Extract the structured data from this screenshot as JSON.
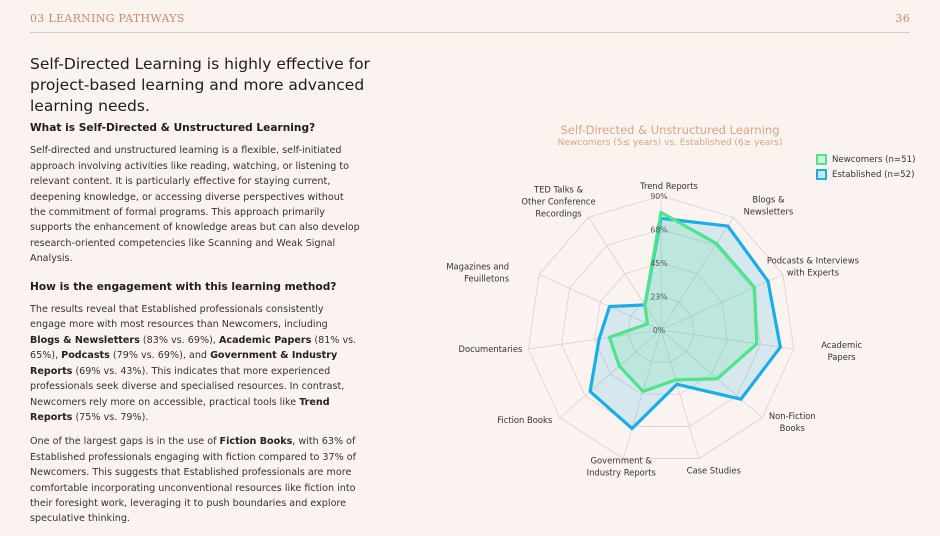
{
  "header": {
    "section": "03 LEARNING PATHWAYS",
    "page_number": "36"
  },
  "headline": "Self-Directed Learning is highly effective for project-based learning and more advanced learning needs.",
  "section1": {
    "heading": "What is Self-Directed & Unstructured Learning?",
    "body": "Self-directed and unstructured learning is a flexible, self-initiated approach involving activities like reading, watching, or listening to relevant content. It is particularly effective for staying current, deepening knowledge, or accessing diverse perspectives without the commitment of formal programs. This approach primarily supports the enhancement of knowledge areas but can also develop research-oriented competencies like Scanning and Weak Signal Analysis."
  },
  "section2": {
    "heading": "How is the engagement with this learning method?",
    "p1": [
      {
        "t": "The results reveal that Established professionals consistently engage more with most resources than Newcomers, including "
      },
      {
        "t": "Blogs & Newsletters",
        "b": true
      },
      {
        "t": " (83% vs. 69%), "
      },
      {
        "t": "Academic Papers",
        "b": true
      },
      {
        "t": " (81% vs. 65%), "
      },
      {
        "t": "Podcasts",
        "b": true
      },
      {
        "t": " (79% vs. 69%), and "
      },
      {
        "t": "Government & Industry Reports",
        "b": true
      },
      {
        "t": " (69% vs. 43%). This indicates that more experienced professionals seek diverse and specialised resources. In contrast, Newcomers rely more on accessible, practical tools like "
      },
      {
        "t": "Trend Reports",
        "b": true
      },
      {
        "t": " (75% vs. 79%)."
      }
    ],
    "p2": [
      {
        "t": "One of the largest gaps is in the use of "
      },
      {
        "t": "Fiction Books",
        "b": true
      },
      {
        "t": ", with 63% of Established professionals engaging with fiction compared to 37% of Newcomers. This suggests that Established professionals are more comfortable incorporating unconventional resources like fiction into their foresight work, leveraging it to push boundaries and explore speculative thinking."
      }
    ]
  },
  "colors": {
    "newcomers": "#4ee38f",
    "established": "#19aee6",
    "accent": "#d9a487"
  },
  "chart_data": {
    "type": "radar",
    "title": "Self-Directed & Unstructured Learning",
    "subtitle": "Newcomers (5≤ years) vs. Established (6≥ years)",
    "categories": [
      "Trend Reports",
      "Blogs & Newsletters",
      "Podcasts & Interviews with Experts",
      "Academic Papers",
      "Non-Fiction Books",
      "Case Studies",
      "Government & Industry Reports",
      "Fiction Books",
      "Documentaries",
      "Magazines and Feuilletons",
      "TED Talks & Other Conference Recordings"
    ],
    "category_lines": [
      [
        "Trend Reports"
      ],
      [
        "Blogs &",
        "Newsletters"
      ],
      [
        "Podcasts & Interviews",
        "with Experts"
      ],
      [
        "Academic",
        "Papers"
      ],
      [
        "Non-Fiction",
        "Books"
      ],
      [
        "Case Studies"
      ],
      [
        "Government &",
        "Industry Reports"
      ],
      [
        "Fiction Books"
      ],
      [
        "Documentaries"
      ],
      [
        "Magazines and",
        "Feuilletons"
      ],
      [
        "TED Talks &",
        "Other Conference",
        "Recordings"
      ]
    ],
    "series": [
      {
        "name": "Newcomers (n=51)",
        "values": [
          79,
          69,
          69,
          65,
          50,
          35,
          43,
          37,
          35,
          10,
          20
        ]
      },
      {
        "name": "Established (n=52)",
        "values": [
          75,
          83,
          79,
          81,
          71,
          38,
          69,
          63,
          42,
          38,
          20
        ]
      }
    ],
    "axis_ticks": [
      "0%",
      "23%",
      "45%",
      "68%",
      "90%"
    ],
    "rlim": [
      0,
      90
    ],
    "legend_position": "top-right",
    "grid": true
  }
}
